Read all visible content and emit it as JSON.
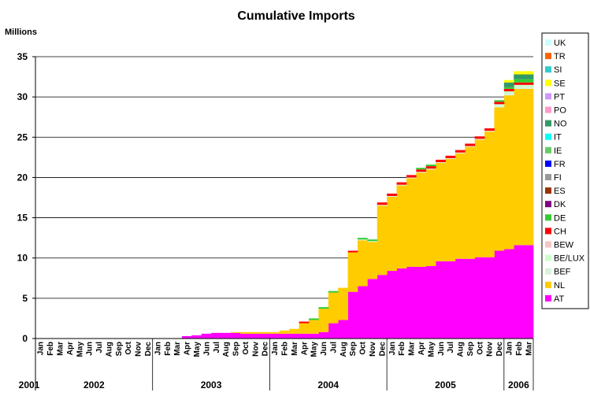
{
  "chart_data": {
    "type": "area",
    "title": "Cumulative Imports",
    "ylabel": "Millions",
    "ylim": [
      0,
      35
    ],
    "yticks": [
      0,
      5,
      10,
      15,
      20,
      25,
      30,
      35
    ],
    "grid": true,
    "legend_position": "right",
    "month_labels": [
      "Jan",
      "Feb",
      "Mar",
      "Apr",
      "May",
      "Jun",
      "Jul",
      "Aug",
      "Sep",
      "Oct",
      "Nov",
      "Dec"
    ],
    "years": [
      "2001",
      "2002",
      "2003",
      "2004",
      "2005",
      "2006"
    ],
    "x_months": 51,
    "series": [
      {
        "name": "AT",
        "color": "#ff00ff",
        "values": [
          0,
          0,
          0,
          0,
          0,
          0,
          0,
          0,
          0,
          0,
          0,
          0,
          0,
          0,
          0,
          0.3,
          0.4,
          0.6,
          0.7,
          0.7,
          0.7,
          0.6,
          0.6,
          0.6,
          0.6,
          0.6,
          0.6,
          0.6,
          0.6,
          0.8,
          1.9,
          2.3,
          5.8,
          6.5,
          7.4,
          7.9,
          8.4,
          8.7,
          8.9,
          8.9,
          9.0,
          9.6,
          9.6,
          9.9,
          9.9,
          10.1,
          10.1,
          10.9,
          11.1,
          11.6,
          11.6
        ]
      },
      {
        "name": "NL",
        "color": "#ffcc00",
        "values": [
          0,
          0,
          0,
          0,
          0,
          0,
          0,
          0,
          0,
          0,
          0,
          0,
          0,
          0,
          0,
          0,
          0,
          0,
          0,
          0,
          0.1,
          0.2,
          0.2,
          0.2,
          0.2,
          0.4,
          0.6,
          1.3,
          1.7,
          2.9,
          3.8,
          4.0,
          4.9,
          5.7,
          4.6,
          8.6,
          9.2,
          10.3,
          11.0,
          11.7,
          12.0,
          12.2,
          12.7,
          13.1,
          13.9,
          14.6,
          15.6,
          17.8,
          19.1,
          19.4,
          19.4
        ]
      },
      {
        "name": "BEF",
        "color": "#d9f2d9",
        "values": [
          0,
          0,
          0,
          0,
          0,
          0,
          0,
          0,
          0,
          0,
          0,
          0,
          0,
          0,
          0,
          0,
          0,
          0,
          0,
          0,
          0,
          0,
          0,
          0,
          0,
          0,
          0,
          0,
          0,
          0,
          0,
          0,
          0,
          0.1,
          0.1,
          0.1,
          0.1,
          0.1,
          0.1,
          0.1,
          0.1,
          0.1,
          0.1,
          0.1,
          0.1,
          0.1,
          0.1,
          0.2,
          0.2,
          0.2,
          0.2
        ]
      },
      {
        "name": "BE/LUX",
        "color": "#ccffcc",
        "values": [
          0,
          0,
          0,
          0,
          0,
          0,
          0,
          0,
          0,
          0,
          0,
          0,
          0,
          0,
          0,
          0,
          0,
          0,
          0,
          0,
          0,
          0,
          0,
          0,
          0,
          0,
          0,
          0,
          0,
          0,
          0,
          0,
          0,
          0,
          0,
          0,
          0,
          0,
          0,
          0,
          0,
          0,
          0,
          0,
          0,
          0,
          0,
          0.2,
          0.3,
          0.3,
          0.3
        ]
      },
      {
        "name": "BEW",
        "color": "#f4c6c6",
        "values": [
          0,
          0,
          0,
          0,
          0,
          0,
          0,
          0,
          0,
          0,
          0,
          0,
          0,
          0,
          0,
          0,
          0,
          0,
          0,
          0,
          0,
          0,
          0,
          0,
          0,
          0,
          0,
          0,
          0,
          0,
          0,
          0,
          0,
          0,
          0,
          0,
          0,
          0,
          0,
          0,
          0,
          0,
          0,
          0,
          0,
          0,
          0,
          0,
          0,
          0,
          0
        ]
      },
      {
        "name": "CH",
        "color": "#ff0000",
        "values": [
          0,
          0,
          0,
          0,
          0,
          0,
          0,
          0,
          0,
          0,
          0,
          0,
          0,
          0,
          0,
          0,
          0,
          0,
          0,
          0,
          0,
          0,
          0,
          0,
          0,
          0,
          0,
          0.2,
          0,
          0,
          0,
          0,
          0.2,
          0,
          0,
          0.3,
          0.3,
          0.3,
          0.3,
          0.3,
          0.3,
          0.3,
          0.3,
          0.3,
          0.3,
          0.3,
          0.3,
          0.3,
          0.3,
          0.3,
          0.3
        ]
      },
      {
        "name": "DE",
        "color": "#33cc33",
        "values": [
          0,
          0,
          0,
          0,
          0,
          0,
          0,
          0,
          0,
          0,
          0,
          0,
          0,
          0,
          0,
          0,
          0,
          0,
          0,
          0,
          0,
          0,
          0,
          0,
          0,
          0,
          0,
          0,
          0.2,
          0.2,
          0.2,
          0,
          0,
          0.2,
          0.2,
          0,
          0,
          0,
          0,
          0.2,
          0.2,
          0,
          0,
          0,
          0,
          0,
          0,
          0.2,
          0.2,
          0.4,
          0.4
        ]
      },
      {
        "name": "DK",
        "color": "#800080",
        "values": [
          0,
          0,
          0,
          0,
          0,
          0,
          0,
          0,
          0,
          0,
          0,
          0,
          0,
          0,
          0,
          0,
          0,
          0,
          0,
          0,
          0,
          0,
          0,
          0,
          0,
          0,
          0,
          0,
          0,
          0,
          0,
          0,
          0,
          0,
          0,
          0,
          0,
          0,
          0,
          0,
          0,
          0,
          0,
          0,
          0,
          0,
          0,
          0,
          0,
          0,
          0
        ]
      },
      {
        "name": "ES",
        "color": "#993300",
        "values": [
          0,
          0,
          0,
          0,
          0,
          0,
          0,
          0,
          0,
          0,
          0,
          0,
          0,
          0,
          0,
          0,
          0,
          0,
          0,
          0,
          0,
          0,
          0,
          0,
          0,
          0,
          0,
          0,
          0,
          0,
          0,
          0,
          0,
          0,
          0,
          0,
          0,
          0,
          0,
          0,
          0,
          0,
          0,
          0,
          0,
          0,
          0,
          0,
          0,
          0,
          0
        ]
      },
      {
        "name": "FI",
        "color": "#999999",
        "values": [
          0,
          0,
          0,
          0,
          0,
          0,
          0,
          0,
          0,
          0,
          0,
          0,
          0,
          0,
          0,
          0,
          0,
          0,
          0,
          0,
          0,
          0,
          0,
          0,
          0,
          0,
          0,
          0,
          0,
          0,
          0,
          0,
          0,
          0,
          0,
          0,
          0,
          0,
          0,
          0,
          0,
          0,
          0,
          0,
          0,
          0,
          0,
          0,
          0,
          0,
          0
        ]
      },
      {
        "name": "FR",
        "color": "#0000ff",
        "values": [
          0,
          0,
          0,
          0,
          0,
          0,
          0,
          0,
          0,
          0,
          0,
          0,
          0,
          0,
          0,
          0,
          0,
          0,
          0,
          0,
          0,
          0,
          0,
          0,
          0,
          0,
          0,
          0,
          0,
          0,
          0,
          0,
          0,
          0,
          0,
          0,
          0,
          0,
          0,
          0,
          0,
          0,
          0,
          0,
          0,
          0,
          0,
          0,
          0,
          0,
          0
        ]
      },
      {
        "name": "IE",
        "color": "#66cc66",
        "values": [
          0,
          0,
          0,
          0,
          0,
          0,
          0,
          0,
          0,
          0,
          0,
          0,
          0,
          0,
          0,
          0,
          0,
          0,
          0,
          0,
          0,
          0,
          0,
          0,
          0,
          0,
          0,
          0,
          0,
          0,
          0,
          0,
          0,
          0,
          0,
          0,
          0,
          0,
          0,
          0,
          0,
          0,
          0,
          0,
          0,
          0,
          0,
          0,
          0,
          0,
          0
        ]
      },
      {
        "name": "IT",
        "color": "#00ffff",
        "values": [
          0,
          0,
          0,
          0,
          0,
          0,
          0,
          0,
          0,
          0,
          0,
          0,
          0,
          0,
          0,
          0,
          0,
          0,
          0,
          0,
          0,
          0,
          0,
          0,
          0,
          0,
          0,
          0,
          0,
          0,
          0,
          0,
          0,
          0,
          0,
          0,
          0,
          0,
          0,
          0,
          0,
          0,
          0,
          0,
          0,
          0,
          0,
          0,
          0,
          0,
          0
        ]
      },
      {
        "name": "NO",
        "color": "#339966",
        "values": [
          0,
          0,
          0,
          0,
          0,
          0,
          0,
          0,
          0,
          0,
          0,
          0,
          0,
          0,
          0,
          0,
          0,
          0,
          0,
          0,
          0,
          0,
          0,
          0,
          0,
          0,
          0,
          0,
          0,
          0,
          0,
          0,
          0,
          0,
          0,
          0,
          0,
          0,
          0,
          0,
          0,
          0,
          0,
          0,
          0,
          0,
          0,
          0,
          0.6,
          0.6,
          0.6
        ]
      },
      {
        "name": "PO",
        "color": "#ff99cc",
        "values": [
          0,
          0,
          0,
          0,
          0,
          0,
          0,
          0,
          0,
          0,
          0,
          0,
          0,
          0,
          0,
          0,
          0,
          0,
          0,
          0,
          0,
          0,
          0,
          0,
          0,
          0,
          0,
          0,
          0,
          0,
          0,
          0,
          0,
          0,
          0,
          0,
          0,
          0,
          0,
          0,
          0,
          0,
          0,
          0,
          0,
          0,
          0,
          0,
          0,
          0,
          0
        ]
      },
      {
        "name": "PT",
        "color": "#cc99ff",
        "values": [
          0,
          0,
          0,
          0,
          0,
          0,
          0,
          0,
          0,
          0,
          0,
          0,
          0,
          0,
          0,
          0,
          0,
          0,
          0,
          0,
          0,
          0,
          0,
          0,
          0,
          0,
          0,
          0,
          0,
          0,
          0,
          0,
          0,
          0,
          0,
          0,
          0,
          0,
          0,
          0,
          0,
          0,
          0,
          0,
          0,
          0,
          0,
          0,
          0,
          0,
          0
        ]
      },
      {
        "name": "SE",
        "color": "#ffff00",
        "values": [
          0,
          0,
          0,
          0,
          0,
          0,
          0,
          0,
          0,
          0,
          0,
          0,
          0,
          0,
          0,
          0,
          0,
          0,
          0,
          0,
          0,
          0,
          0,
          0,
          0,
          0,
          0,
          0,
          0,
          0,
          0,
          0,
          0,
          0,
          0,
          0,
          0,
          0,
          0,
          0,
          0,
          0,
          0,
          0,
          0,
          0,
          0,
          0,
          0.3,
          0.4,
          0.4
        ]
      },
      {
        "name": "SI",
        "color": "#33cccc",
        "values": [
          0,
          0,
          0,
          0,
          0,
          0,
          0,
          0,
          0,
          0,
          0,
          0,
          0,
          0,
          0,
          0,
          0,
          0,
          0,
          0,
          0,
          0,
          0,
          0,
          0,
          0,
          0,
          0,
          0,
          0,
          0,
          0,
          0,
          0,
          0,
          0,
          0,
          0,
          0,
          0,
          0,
          0,
          0,
          0,
          0,
          0,
          0,
          0,
          0,
          0,
          0
        ]
      },
      {
        "name": "TR",
        "color": "#ff6600",
        "values": [
          0,
          0,
          0,
          0,
          0,
          0,
          0,
          0,
          0,
          0,
          0,
          0,
          0,
          0,
          0,
          0,
          0,
          0,
          0,
          0,
          0,
          0,
          0,
          0,
          0,
          0,
          0,
          0,
          0,
          0,
          0,
          0,
          0,
          0,
          0,
          0,
          0,
          0,
          0,
          0,
          0,
          0,
          0,
          0,
          0,
          0,
          0,
          0,
          0,
          0,
          0
        ]
      },
      {
        "name": "UK",
        "color": "#ccffff",
        "values": [
          0,
          0,
          0,
          0,
          0,
          0,
          0,
          0,
          0,
          0,
          0,
          0,
          0,
          0,
          0,
          0,
          0,
          0,
          0,
          0,
          0,
          0,
          0,
          0,
          0,
          0,
          0,
          0,
          0,
          0,
          0,
          0,
          0,
          0,
          0,
          0,
          0,
          0,
          0,
          0,
          0,
          0,
          0,
          0,
          0,
          0,
          0,
          0,
          0,
          0,
          0
        ]
      }
    ]
  }
}
